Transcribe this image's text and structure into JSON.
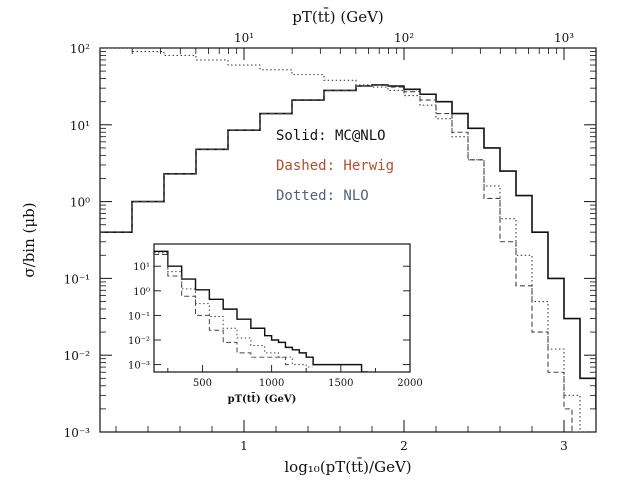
{
  "chart_data": [
    {
      "type": "line",
      "xlabel": "log₁₀(pT(tt̄)/GeV)",
      "x2label": "pT(tt̄) (GeV)",
      "ylabel": "σ/bin (μb)",
      "xlim": [
        0.1,
        3.2
      ],
      "ylim": [
        0.001,
        100
      ],
      "yscale": "log",
      "xticks": [
        1,
        2,
        3
      ],
      "x2ticks": [
        "10¹",
        "10²",
        "10³"
      ],
      "x2tick_values": [
        10,
        100,
        1000
      ],
      "yticks": [
        {
          "v": 100,
          "label": "10²"
        },
        {
          "v": 10,
          "label": "10¹"
        },
        {
          "v": 1,
          "label": "10⁰"
        },
        {
          "v": 0.1,
          "label": "10⁻¹"
        },
        {
          "v": 0.01,
          "label": "10⁻²"
        },
        {
          "v": 0.001,
          "label": "10⁻³"
        }
      ],
      "legend": [
        {
          "text": "Solid: MC@NLO",
          "color": "#111111"
        },
        {
          "text": "Dashed: Herwig",
          "color": "#b34d2c"
        },
        {
          "text": "Dotted: NLO",
          "color": "#55607a"
        }
      ],
      "legend_position": "center-right",
      "series": [
        {
          "name": "MC@NLO",
          "style": "solid",
          "x": [
            0.1,
            0.3,
            0.5,
            0.7,
            0.9,
            1.1,
            1.3,
            1.5,
            1.7,
            1.8,
            1.9,
            2.0,
            2.1,
            2.2,
            2.3,
            2.4,
            2.5,
            2.6,
            2.7,
            2.8,
            2.9,
            3.0,
            3.1,
            3.2
          ],
          "y": [
            0.4,
            1.0,
            2.3,
            4.8,
            8.5,
            14,
            21,
            28,
            32,
            33,
            32,
            29,
            25,
            20,
            14,
            9,
            5,
            2.5,
            1.2,
            0.4,
            0.1,
            0.03,
            0.005,
            0.002
          ]
        },
        {
          "name": "Herwig",
          "style": "dashed",
          "x": [
            0.1,
            0.3,
            0.5,
            0.7,
            0.9,
            1.1,
            1.3,
            1.5,
            1.7,
            1.8,
            1.9,
            2.0,
            2.1,
            2.2,
            2.3,
            2.4,
            2.5,
            2.6,
            2.7,
            2.8,
            2.9,
            3.0,
            3.05
          ],
          "y": [
            0.4,
            1.0,
            2.3,
            4.8,
            8.5,
            14,
            21,
            28,
            32,
            33,
            31,
            27,
            21,
            14,
            8,
            3.5,
            1.1,
            0.3,
            0.08,
            0.02,
            0.006,
            0.002,
            0.001
          ]
        },
        {
          "name": "NLO",
          "style": "dotted",
          "x": [
            0.1,
            0.3,
            0.5,
            0.7,
            0.9,
            1.1,
            1.3,
            1.5,
            1.7,
            1.8,
            1.9,
            2.0,
            2.1,
            2.2,
            2.3,
            2.4,
            2.5,
            2.6,
            2.7,
            2.8,
            2.9,
            3.0,
            3.1
          ],
          "y": [
            100,
            90,
            80,
            70,
            60,
            52,
            45,
            38,
            33,
            31,
            28,
            24,
            18,
            12,
            7,
            3.5,
            1.6,
            0.6,
            0.2,
            0.05,
            0.012,
            0.003,
            0.001
          ]
        }
      ]
    },
    {
      "type": "line",
      "xlabel": "pT(tt̄) (GeV)",
      "xlim": [
        150,
        2000
      ],
      "ylim": [
        0.0005,
        80
      ],
      "yscale": "log",
      "xticks": [
        500,
        1000,
        1500,
        2000
      ],
      "yticks": [
        {
          "v": 10,
          "label": "10¹"
        },
        {
          "v": 1,
          "label": "10⁰"
        },
        {
          "v": 0.1,
          "label": "10⁻¹"
        },
        {
          "v": 0.01,
          "label": "10⁻²"
        },
        {
          "v": 0.001,
          "label": "10⁻³"
        }
      ],
      "series": [
        {
          "name": "MC@NLO",
          "style": "solid",
          "x": [
            150,
            250,
            350,
            450,
            550,
            650,
            750,
            850,
            950,
            1000,
            1050,
            1100,
            1150,
            1200,
            1250,
            1300,
            1600,
            1650
          ],
          "y": [
            40,
            10,
            3,
            1.1,
            0.45,
            0.18,
            0.07,
            0.03,
            0.015,
            0.01,
            0.008,
            0.005,
            0.004,
            0.003,
            0.002,
            0.001,
            0.001,
            0.0005
          ]
        },
        {
          "name": "Herwig",
          "style": "dashed",
          "x": [
            150,
            250,
            350,
            450,
            550,
            650,
            750,
            850,
            950,
            1050,
            1100
          ],
          "y": [
            30,
            4,
            0.6,
            0.1,
            0.025,
            0.008,
            0.003,
            0.002,
            0.002,
            0.002,
            0.001
          ]
        },
        {
          "name": "NLO",
          "style": "dotted",
          "x": [
            150,
            250,
            350,
            450,
            550,
            650,
            750,
            850,
            950,
            1050,
            1150,
            1250
          ],
          "y": [
            35,
            6,
            1.2,
            0.3,
            0.09,
            0.03,
            0.012,
            0.006,
            0.003,
            0.002,
            0.001,
            0.0008
          ]
        }
      ]
    }
  ]
}
